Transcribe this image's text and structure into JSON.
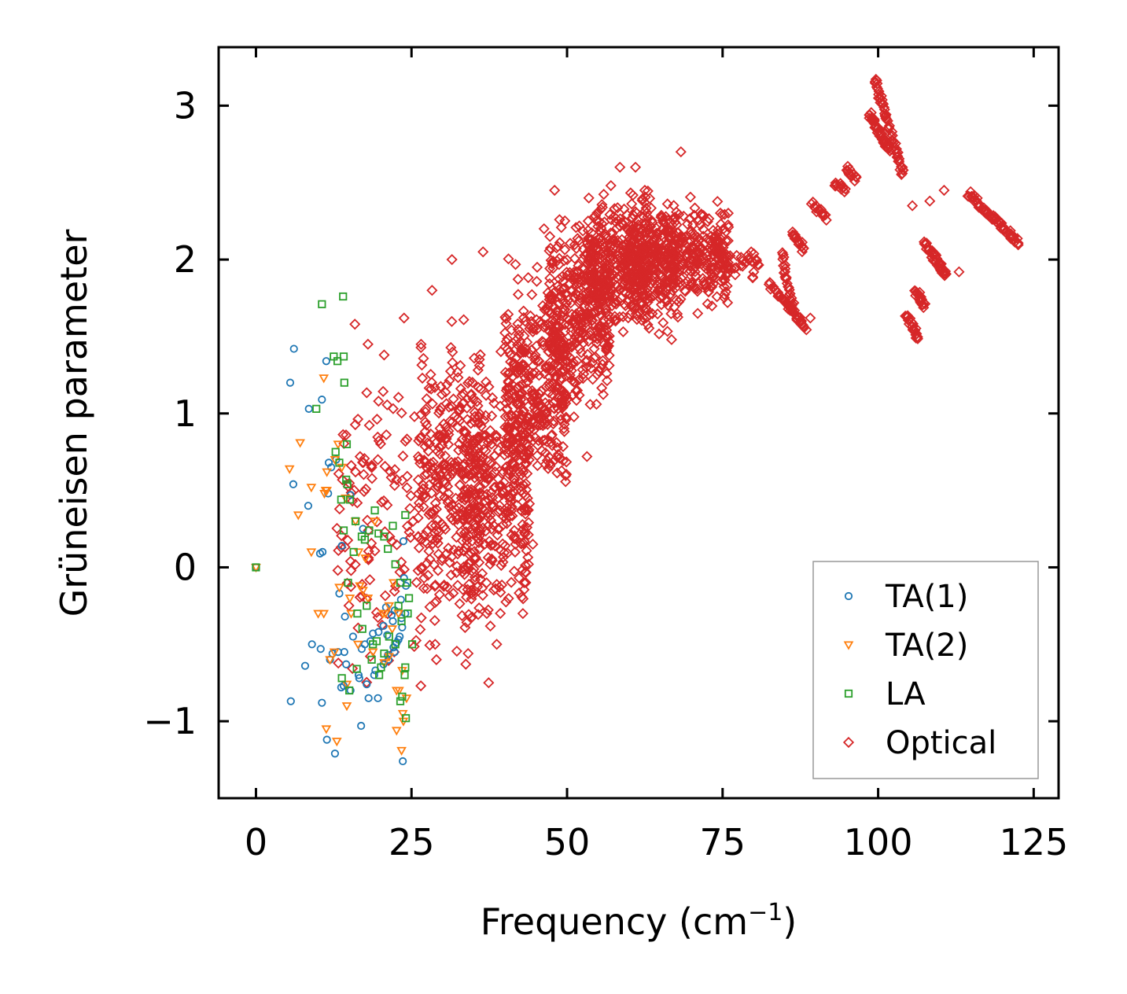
{
  "chart_data": {
    "type": "scatter",
    "title": "",
    "xlabel": "Frequency (cm",
    "xlabel_sup": "−1",
    "xlabel_close": ")",
    "ylabel": "Grüneisen parameter",
    "xlim": [
      -6,
      129
    ],
    "ylim": [
      -1.5,
      3.38
    ],
    "xticks": [
      0,
      25,
      50,
      75,
      100,
      125
    ],
    "xtick_labels": [
      "0",
      "25",
      "50",
      "75",
      "100",
      "125"
    ],
    "yticks": [
      -1,
      0,
      1,
      2,
      3
    ],
    "ytick_labels": [
      "−1",
      "0",
      "1",
      "2",
      "3"
    ],
    "grid": false,
    "legend_position": "bottom-right",
    "series": [
      {
        "name": "TA(1)",
        "marker": "circle",
        "color": "#1f77b4",
        "x": [
          0,
          5.5,
          6.1,
          6.0,
          8.5,
          10.6,
          11.3,
          11.6,
          12.1,
          11.7,
          8.4,
          12.9,
          10.3,
          10.7,
          13.8,
          13.4,
          15.6,
          17.0,
          17.2,
          18.4,
          19.0,
          21.3,
          22.3,
          23.1,
          23.6,
          24.0,
          23.7,
          9.0,
          10.4,
          7.9,
          11.9,
          12.3,
          13.2,
          14.3,
          14.2,
          14.5,
          15.2,
          16.5,
          17.5,
          18.8,
          19.7,
          20.5,
          21.1,
          22.0,
          22.6,
          23.4,
          5.6,
          10.6,
          11.4,
          12.7,
          16.9,
          19.6,
          20.5,
          21.2,
          22.1,
          22.9,
          23.5,
          18.1,
          16.6,
          14.1,
          20.9,
          21.8,
          22.3,
          23.3,
          19.2,
          17.8,
          24.1,
          13.7,
          15.2,
          23.8
        ],
        "y": [
          0,
          1.2,
          1.42,
          0.54,
          1.03,
          1.09,
          1.34,
          0.48,
          0.65,
          0.68,
          0.4,
          0.7,
          0.09,
          0.1,
          0.14,
          -0.17,
          -0.45,
          -0.53,
          0.25,
          -0.48,
          -0.7,
          -0.6,
          -0.55,
          -0.45,
          -1.26,
          -0.3,
          0.17,
          -0.5,
          -0.53,
          -0.64,
          -0.6,
          -0.56,
          -0.55,
          -0.32,
          -0.55,
          -0.63,
          -0.8,
          -0.7,
          -0.5,
          -0.43,
          -0.42,
          -0.38,
          -0.44,
          -0.35,
          -0.49,
          -0.33,
          -0.87,
          -0.88,
          -1.12,
          -1.21,
          -1.03,
          -0.85,
          -0.63,
          -0.57,
          -0.52,
          -0.47,
          -0.39,
          -0.85,
          -0.72,
          -0.77,
          -0.26,
          -0.31,
          -0.28,
          -0.21,
          -0.67,
          -0.76,
          -0.12,
          -0.78,
          0.47,
          -0.07
        ]
      },
      {
        "name": "TA(2)",
        "marker": "triangle",
        "color": "#ff7f0e",
        "x": [
          0,
          5.4,
          7.1,
          6.8,
          10.9,
          11.4,
          11.2,
          11.0,
          8.9,
          11.4,
          12.7,
          13.2,
          13.8,
          14.4,
          15.1,
          16.0,
          16.5,
          17.2,
          18.0,
          19.1,
          20.4,
          21.4,
          22.1,
          22.9,
          23.5,
          24.2,
          8.9,
          10.0,
          10.9,
          11.9,
          12.6,
          13.4,
          14.6,
          15.3,
          16.4,
          18.8,
          20.6,
          21.4,
          22.6,
          23.0,
          23.6,
          13.0,
          11.3,
          14.6,
          22.6,
          23.4,
          23.7,
          21.9,
          20.8,
          17.6,
          16.7
        ],
        "y": [
          0,
          0.64,
          0.81,
          0.34,
          1.23,
          0.62,
          0.5,
          0.48,
          0.52,
          0.5,
          0.7,
          0.8,
          0.65,
          0.45,
          -0.2,
          0.3,
          0.1,
          -0.15,
          -0.2,
          0.3,
          -0.3,
          -0.25,
          -0.1,
          -0.3,
          -0.67,
          -0.85,
          0.1,
          -0.3,
          -0.3,
          -0.6,
          -0.55,
          -0.13,
          -0.9,
          -0.3,
          -0.5,
          -0.55,
          -0.62,
          -0.58,
          -0.8,
          -0.8,
          -0.95,
          -1.13,
          -1.05,
          -0.76,
          -1.06,
          -1.19,
          -1.0,
          -0.4,
          -0.3,
          0.06,
          -0.12
        ]
      },
      {
        "name": "LA",
        "marker": "square",
        "color": "#2ca02c",
        "x": [
          0,
          10.6,
          14.0,
          12.5,
          13.1,
          14.1,
          14.2,
          9.7,
          14.6,
          12.8,
          13.4,
          14.5,
          14.7,
          15.1,
          16.0,
          17.0,
          17.5,
          18.2,
          19.1,
          19.7,
          20.6,
          21.2,
          22.0,
          22.4,
          23.2,
          24.0,
          24.3,
          24.6,
          25.1,
          13.7,
          14.1,
          14.8,
          15.7,
          16.3,
          17.1,
          17.8,
          18.6,
          19.8,
          20.1,
          21.4,
          22.9,
          23.4,
          24.0,
          24.4,
          16.2,
          15.0,
          13.8,
          23.5,
          23.9,
          24.1,
          23.2,
          22.4,
          19.4,
          18.8,
          20.6
        ],
        "y": [
          0,
          1.71,
          1.76,
          1.37,
          1.34,
          1.37,
          1.2,
          1.03,
          0.8,
          0.75,
          0.68,
          0.57,
          0.54,
          0.44,
          0.3,
          0.2,
          0.18,
          0.24,
          0.37,
          0.22,
          0.2,
          0.12,
          0.27,
          0.02,
          -0.1,
          0.34,
          -0.1,
          -0.2,
          -0.5,
          0.44,
          0.24,
          -0.1,
          0.1,
          -0.3,
          -0.4,
          -0.25,
          -0.6,
          -0.7,
          -0.65,
          -0.45,
          -0.25,
          -0.35,
          -0.65,
          -0.3,
          -0.66,
          -0.8,
          -0.72,
          -0.84,
          -0.7,
          -0.98,
          -0.87,
          -0.5,
          -0.48,
          -0.5,
          -0.56
        ]
      },
      {
        "name": "Optical",
        "marker": "diamond",
        "color": "#d62728",
        "clusters": [
          {
            "x_range": [
              13,
              26
            ],
            "y_range": [
              -0.9,
              1.6
            ],
            "count": 110
          },
          {
            "x_range": [
              26,
              36
            ],
            "y_range": [
              -0.8,
              1.8
            ],
            "count": 320
          },
          {
            "x_range": [
              33,
              44
            ],
            "y_range": [
              -0.6,
              1.6
            ],
            "count": 360
          },
          {
            "x_range": [
              40,
              50
            ],
            "y_range": [
              0.2,
              2.1
            ],
            "count": 360
          },
          {
            "x_range": [
              47,
              57
            ],
            "y_range": [
              0.9,
              2.4
            ],
            "count": 340
          },
          {
            "x_range": [
              53,
              63
            ],
            "y_range": [
              1.4,
              2.55
            ],
            "count": 330
          },
          {
            "x_range": [
              59,
              68
            ],
            "y_range": [
              1.4,
              2.6
            ],
            "count": 300
          },
          {
            "x_range": [
              66,
              76
            ],
            "y_range": [
              1.6,
              2.45
            ],
            "count": 260
          },
          {
            "x_range": [
              75,
              81
            ],
            "y_range": [
              1.85,
              2.1
            ],
            "count": 30
          }
        ],
        "segments": [
          {
            "x0": 82.5,
            "y0": 1.85,
            "x1": 88.5,
            "y1": 1.55,
            "count": 40
          },
          {
            "x0": 84.5,
            "y0": 2.05,
            "x1": 86.5,
            "y1": 1.65,
            "count": 25
          },
          {
            "x0": 86.2,
            "y0": 2.17,
            "x1": 88.0,
            "y1": 2.07,
            "count": 18
          },
          {
            "x0": 89.5,
            "y0": 2.36,
            "x1": 91.5,
            "y1": 2.27,
            "count": 16
          },
          {
            "x0": 93.0,
            "y0": 2.5,
            "x1": 94.8,
            "y1": 2.45,
            "count": 14
          },
          {
            "x0": 94.8,
            "y0": 2.6,
            "x1": 96.5,
            "y1": 2.52,
            "count": 14
          },
          {
            "x0": 98.5,
            "y0": 2.95,
            "x1": 102.0,
            "y1": 2.7,
            "count": 40
          },
          {
            "x0": 99.5,
            "y0": 3.17,
            "x1": 104.0,
            "y1": 2.55,
            "count": 55
          },
          {
            "x0": 104.5,
            "y0": 1.65,
            "x1": 106.5,
            "y1": 1.48,
            "count": 22
          },
          {
            "x0": 106.0,
            "y0": 1.8,
            "x1": 107.5,
            "y1": 1.7,
            "count": 18
          },
          {
            "x0": 107.5,
            "y0": 2.1,
            "x1": 111.0,
            "y1": 1.9,
            "count": 40
          },
          {
            "x0": 114.5,
            "y0": 2.43,
            "x1": 122.5,
            "y1": 2.11,
            "count": 60
          }
        ],
        "outliers": [
          [
            36.5,
            2.05
          ],
          [
            38.2,
            0.4
          ],
          [
            28.3,
            1.8
          ],
          [
            31.5,
            2.0
          ],
          [
            45.2,
            1.95
          ],
          [
            46.3,
            2.2
          ],
          [
            48.0,
            2.45
          ],
          [
            53.5,
            2.4
          ],
          [
            58.5,
            2.6
          ],
          [
            61.0,
            2.6
          ],
          [
            62.5,
            2.45
          ],
          [
            68.3,
            2.7
          ],
          [
            57.8,
            1.6
          ],
          [
            66.8,
            1.48
          ],
          [
            71.0,
            1.65
          ],
          [
            75.8,
            1.72
          ],
          [
            79.6,
            2.05
          ],
          [
            89.1,
            1.62
          ],
          [
            108.3,
            2.38
          ],
          [
            110.6,
            2.45
          ],
          [
            113.0,
            1.92
          ],
          [
            105.5,
            2.35
          ],
          [
            103.9,
            2.6
          ],
          [
            34.1,
            -0.56
          ],
          [
            37.4,
            -0.75
          ],
          [
            38.7,
            -0.5
          ],
          [
            26.5,
            -0.77
          ],
          [
            29.0,
            -0.6
          ],
          [
            43.8,
            0.02
          ],
          [
            42.9,
            -0.3
          ],
          [
            44.5,
            0.15
          ],
          [
            53.2,
            0.72
          ],
          [
            37.1,
            -0.3
          ],
          [
            28.8,
            -0.5
          ],
          [
            18.0,
            1.45
          ],
          [
            15.9,
            1.58
          ],
          [
            20.6,
            1.38
          ],
          [
            23.8,
            1.62
          ],
          [
            19.6,
            0.7
          ],
          [
            21.5,
            0.2
          ],
          [
            16.0,
            0.62
          ]
        ]
      }
    ]
  }
}
